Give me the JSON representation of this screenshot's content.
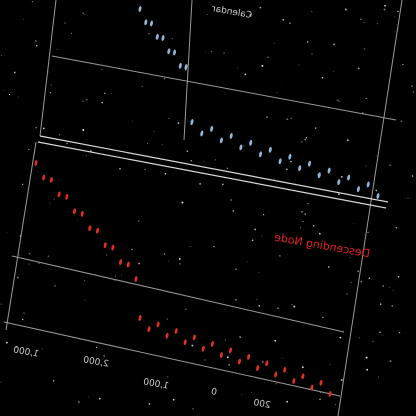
{
  "plot": {
    "top_label": "Calendar",
    "node_label": "Descending Node",
    "axis_labels": [
      "1,000",
      "2,000",
      "1,000",
      "0",
      "200"
    ]
  }
}
